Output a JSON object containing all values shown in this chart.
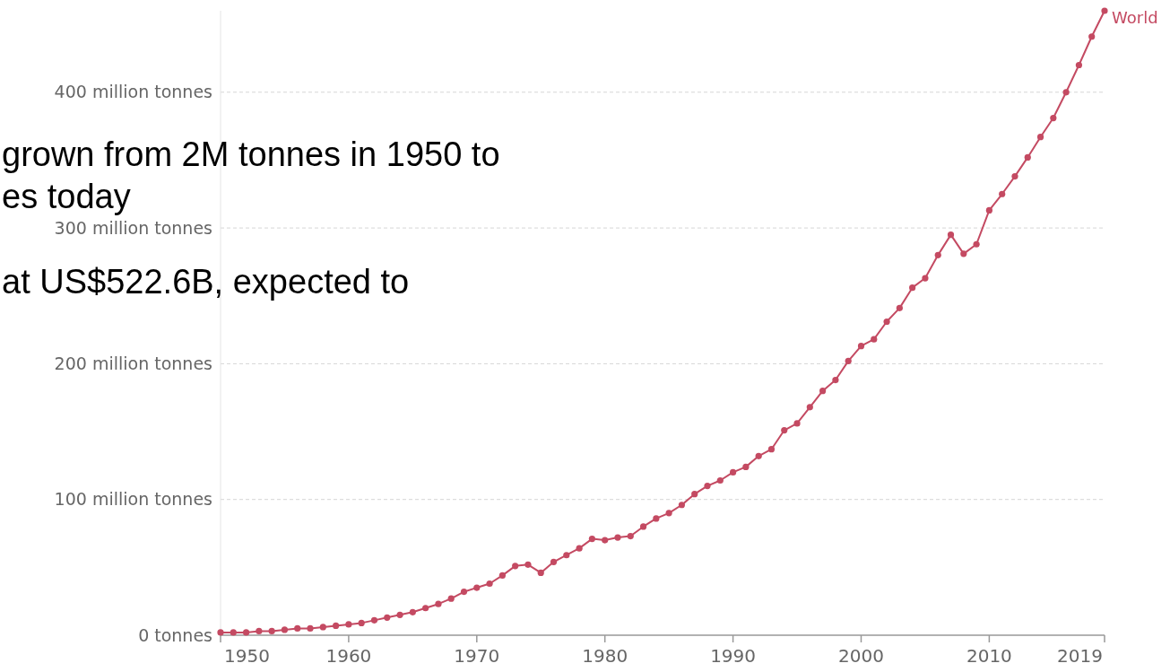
{
  "chart_data": {
    "type": "line",
    "x": [
      1950,
      1951,
      1952,
      1953,
      1954,
      1955,
      1956,
      1957,
      1958,
      1959,
      1960,
      1961,
      1962,
      1963,
      1964,
      1965,
      1966,
      1967,
      1968,
      1969,
      1970,
      1971,
      1972,
      1973,
      1974,
      1975,
      1976,
      1977,
      1978,
      1979,
      1980,
      1981,
      1982,
      1983,
      1984,
      1985,
      1986,
      1987,
      1988,
      1989,
      1990,
      1991,
      1992,
      1993,
      1994,
      1995,
      1996,
      1997,
      1998,
      1999,
      2000,
      2001,
      2002,
      2003,
      2004,
      2005,
      2006,
      2007,
      2008,
      2009,
      2010,
      2011,
      2012,
      2013,
      2014,
      2015,
      2016,
      2017,
      2018,
      2019
    ],
    "series": [
      {
        "name": "World",
        "color": "#c44a62",
        "values": [
          2,
          2,
          2,
          3,
          3,
          4,
          5,
          5,
          6,
          7,
          8,
          9,
          11,
          13,
          15,
          17,
          20,
          23,
          27,
          32,
          35,
          38,
          44,
          51,
          52,
          46,
          54,
          59,
          64,
          71,
          70,
          72,
          73,
          80,
          86,
          90,
          96,
          104,
          110,
          114,
          120,
          124,
          132,
          137,
          151,
          156,
          168,
          180,
          188,
          202,
          213,
          218,
          231,
          241,
          256,
          263,
          280,
          295,
          281,
          288,
          313,
          325,
          338,
          352,
          367,
          381,
          400,
          420,
          441,
          460
        ]
      }
    ],
    "xlim": [
      1950,
      2019
    ],
    "xticks": [
      1950,
      1960,
      1970,
      1980,
      1990,
      2000,
      2010,
      2019
    ],
    "ylim": [
      0,
      460
    ],
    "yticks": [
      {
        "value": 0,
        "label": "0 tonnes"
      },
      {
        "value": 100,
        "label": "100 million tonnes"
      },
      {
        "value": 200,
        "label": "200 million tonnes"
      },
      {
        "value": 300,
        "label": "300 million tonnes"
      },
      {
        "value": 400,
        "label": "400 million tonnes"
      }
    ],
    "grid": "y",
    "marker": "circle",
    "line_style": "solid",
    "annotations": [
      "grown from 2M tonnes in 1950 to",
      "es today",
      "at US$522.6B, expected to"
    ]
  }
}
